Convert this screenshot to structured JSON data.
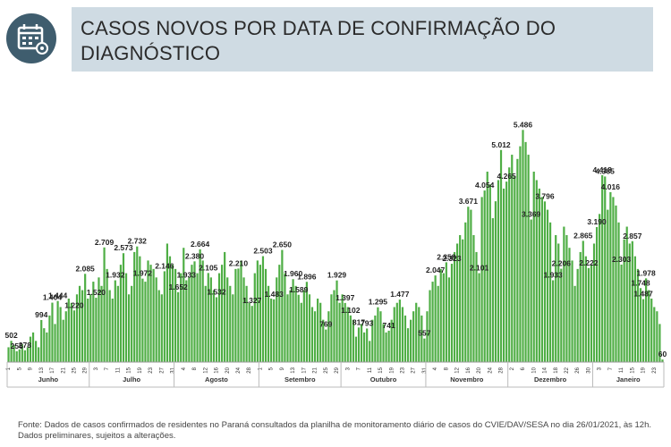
{
  "chart_data": {
    "type": "bar",
    "title": "CASOS NOVOS POR DATA DE CONFIRMAÇÃO DO DIAGNÓSTICO",
    "source": "Fonte: Dados de casos confirmados de residentes no Paraná consultados da planilha de monitoramento diário de casos do CVIE/DAV/SESA no dia 26/01/2021, às 12h. Dados preliminares, sujeitos a alterações.",
    "color": "#4fae45",
    "ylim": [
      0,
      6000
    ],
    "months": [
      "Junho",
      "Julho",
      "Agosto",
      "Setembro",
      "Outubro",
      "Novembro",
      "Dezembro",
      "Janeiro"
    ],
    "categories": [
      1,
      null,
      null,
      null,
      5,
      null,
      null,
      null,
      9,
      null,
      null,
      null,
      13,
      null,
      null,
      null,
      17,
      null,
      null,
      null,
      21,
      null,
      null,
      null,
      25,
      null,
      null,
      null,
      29,
      null,
      null,
      null,
      3,
      null,
      null,
      null,
      7,
      null,
      null,
      null,
      11,
      null,
      null,
      null,
      15,
      null,
      null,
      null,
      19,
      null,
      null,
      null,
      23,
      null,
      null,
      null,
      27,
      null,
      null,
      null,
      31,
      null,
      null,
      null,
      4,
      null,
      null,
      null,
      8,
      null,
      null,
      null,
      12,
      null,
      null,
      null,
      16,
      null,
      null,
      null,
      20,
      null,
      null,
      null,
      24,
      null,
      null,
      null,
      28,
      null,
      null,
      null,
      1,
      null,
      null,
      null,
      5,
      null,
      null,
      null,
      9,
      null,
      null,
      null,
      13,
      null,
      null,
      null,
      17,
      null,
      null,
      null,
      21,
      null,
      null,
      null,
      25,
      null,
      null,
      null,
      29,
      null,
      null,
      null,
      3,
      null,
      null,
      null,
      7,
      null,
      null,
      null,
      11,
      null,
      null,
      null,
      15,
      null,
      null,
      null,
      19,
      null,
      null,
      null,
      23,
      null,
      null,
      null,
      27,
      null,
      null,
      null,
      31,
      null,
      null,
      null,
      4,
      null,
      null,
      null,
      8,
      null,
      null,
      null,
      12,
      null,
      null,
      null,
      16,
      null,
      null,
      null,
      20,
      null,
      null,
      null,
      24,
      null,
      null,
      null,
      28,
      null,
      null,
      null,
      2,
      null,
      null,
      null,
      6,
      null,
      null,
      null,
      10,
      null,
      null,
      null,
      14,
      null,
      null,
      null,
      18,
      null,
      null,
      null,
      22,
      null,
      null,
      null,
      26,
      null,
      null,
      null,
      30,
      null,
      null,
      null,
      3,
      null,
      null,
      null,
      7,
      null,
      null,
      null,
      11,
      null,
      null,
      null,
      15,
      null,
      null,
      null,
      19,
      null,
      null,
      null,
      23,
      null,
      null,
      null
    ],
    "values": [
      350,
      502,
      400,
      256,
      300,
      420,
      278,
      350,
      600,
      700,
      500,
      350,
      994,
      800,
      700,
      1100,
      1404,
      900,
      1444,
      1300,
      1000,
      1200,
      1500,
      1400,
      1220,
      1600,
      1800,
      1700,
      2085,
      1500,
      1600,
      1900,
      1520,
      2000,
      1800,
      2709,
      2200,
      1700,
      1500,
      1932,
      1800,
      2300,
      2573,
      2100,
      1600,
      1800,
      2600,
      2732,
      2500,
      1972,
      1900,
      2400,
      2300,
      2200,
      2000,
      1700,
      1600,
      2146,
      2800,
      2500,
      2300,
      2200,
      1652,
      2100,
      2700,
      1933,
      2000,
      2300,
      2380,
      2100,
      2664,
      2400,
      1800,
      2105,
      2000,
      1700,
      1532,
      2100,
      2300,
      2600,
      2000,
      1800,
      1600,
      2200,
      2210,
      2400,
      2000,
      1800,
      1400,
      1327,
      2100,
      2400,
      2300,
      2503,
      2200,
      1800,
      1500,
      1483,
      2000,
      2300,
      2650,
      2100,
      1600,
      1700,
      1960,
      1800,
      1589,
      1400,
      1700,
      1896,
      1600,
      1300,
      1200,
      1500,
      1400,
      1000,
      769,
      1200,
      1600,
      1700,
      1929,
      1400,
      1600,
      1397,
      1300,
      1102,
      1000,
      600,
      817,
      900,
      700,
      793,
      500,
      1000,
      1100,
      1295,
      1200,
      900,
      700,
      741,
      1000,
      1300,
      1400,
      1477,
      1300,
      1100,
      800,
      1000,
      1200,
      1400,
      1300,
      1100,
      557,
      1200,
      1700,
      1900,
      2047,
      1800,
      2200,
      2100,
      2358,
      2000,
      2323,
      2600,
      2800,
      3000,
      2900,
      3300,
      3671,
      3600,
      3000,
      2600,
      2101,
      3900,
      4054,
      4500,
      4200,
      3400,
      3800,
      4300,
      5012,
      4100,
      4265,
      4600,
      4900,
      4400,
      4800,
      5100,
      5486,
      5200,
      4900,
      3369,
      4500,
      4300,
      4100,
      3900,
      3796,
      3600,
      3300,
      1933,
      3000,
      2800,
      2206,
      3200,
      3000,
      2700,
      2400,
      1800,
      2200,
      2600,
      2865,
      2500,
      2222,
      2300,
      2800,
      3190,
      3500,
      4418,
      4385,
      3600,
      4016,
      3900,
      3700,
      3300,
      2303,
      2900,
      3200,
      2800,
      2857,
      2500,
      2200,
      1748,
      1487,
      1978,
      1700,
      1500,
      1300,
      1200,
      900,
      60
    ],
    "value_labels": [
      null,
      "502",
      null,
      "256",
      null,
      null,
      "278",
      null,
      null,
      null,
      null,
      null,
      "994",
      null,
      null,
      null,
      "1.404",
      null,
      "1.444",
      null,
      null,
      null,
      null,
      null,
      "1.220",
      null,
      null,
      null,
      "2.085",
      null,
      null,
      null,
      "1.520",
      null,
      null,
      "2.709",
      null,
      null,
      null,
      "1.932",
      null,
      null,
      "2.573",
      null,
      null,
      null,
      null,
      "2.732",
      null,
      "1.972",
      null,
      null,
      null,
      null,
      null,
      null,
      null,
      "2.146",
      null,
      null,
      null,
      null,
      "1.652",
      null,
      null,
      "1.933",
      null,
      null,
      "2.380",
      null,
      "2.664",
      null,
      null,
      "2.105",
      null,
      null,
      "1.532",
      null,
      null,
      null,
      null,
      null,
      null,
      null,
      "2.210",
      null,
      null,
      null,
      null,
      "1.327",
      null,
      null,
      null,
      "2.503",
      null,
      null,
      null,
      "1.483",
      null,
      null,
      "2.650",
      null,
      null,
      null,
      "1.960",
      null,
      "1.589",
      null,
      null,
      "1.896",
      null,
      null,
      null,
      null,
      null,
      null,
      "769",
      null,
      null,
      null,
      "1.929",
      null,
      null,
      "1.397",
      null,
      "1.102",
      null,
      null,
      "817",
      null,
      null,
      "793",
      null,
      null,
      null,
      "1.295",
      null,
      null,
      null,
      "741",
      null,
      null,
      null,
      "1.477",
      null,
      null,
      null,
      null,
      null,
      null,
      null,
      null,
      "557",
      null,
      null,
      null,
      "2.047",
      null,
      null,
      null,
      "2.358",
      null,
      "2.323",
      null,
      null,
      null,
      null,
      null,
      "3.671",
      null,
      null,
      null,
      "2.101",
      null,
      "4.054",
      null,
      null,
      null,
      null,
      null,
      "5.012",
      null,
      "4.265",
      null,
      null,
      null,
      null,
      null,
      "5.486",
      null,
      null,
      "3.369",
      null,
      null,
      null,
      null,
      "3.796",
      null,
      null,
      "1.933",
      null,
      null,
      "2.206",
      null,
      null,
      null,
      null,
      null,
      null,
      null,
      "2.865",
      null,
      "2.222",
      null,
      null,
      "3.190",
      null,
      "4.418",
      "4.385",
      null,
      "4.016",
      null,
      null,
      null,
      "2.303",
      null,
      null,
      null,
      "2.857",
      null,
      null,
      "1.748",
      "1.487",
      "1.978",
      null,
      null,
      null,
      null,
      null,
      "60"
    ]
  }
}
